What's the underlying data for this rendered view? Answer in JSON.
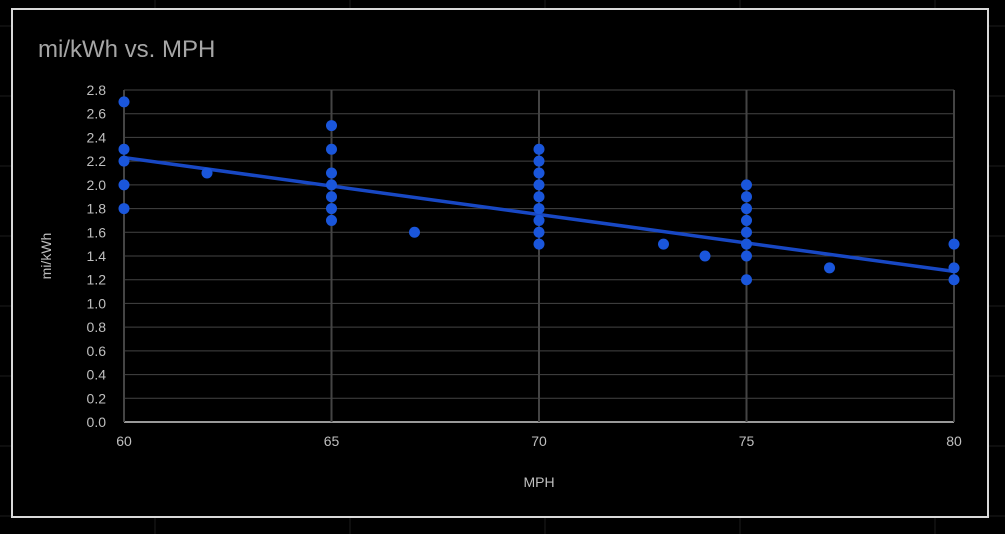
{
  "colors": {
    "background": "#000000",
    "frame_border": "#d9d9d9",
    "gridline": "#444444",
    "axis_text": "#bfbfbf",
    "title_text": "#a6a6a6",
    "series": "#1a56db",
    "trendline": "#1848c4"
  },
  "chart_data": {
    "type": "scatter",
    "title": "mi/kWh vs. MPH",
    "xlabel": "MPH",
    "ylabel": "mi/kWh",
    "xlim": [
      60,
      80
    ],
    "ylim": [
      0.0,
      2.8
    ],
    "xticks": [
      "60",
      "65",
      "70",
      "75",
      "80"
    ],
    "yticks": [
      "0.0",
      "0.2",
      "0.4",
      "0.6",
      "0.8",
      "1.0",
      "1.2",
      "1.4",
      "1.6",
      "1.8",
      "2.0",
      "2.2",
      "2.4",
      "2.6",
      "2.8"
    ],
    "grid": true,
    "legend": "none",
    "points": [
      [
        60,
        2.7
      ],
      [
        60,
        2.3
      ],
      [
        60,
        2.2
      ],
      [
        60,
        2.0
      ],
      [
        60,
        1.8
      ],
      [
        62,
        2.1
      ],
      [
        65,
        2.5
      ],
      [
        65,
        2.3
      ],
      [
        65,
        2.1
      ],
      [
        65,
        2.0
      ],
      [
        65,
        1.9
      ],
      [
        65,
        1.8
      ],
      [
        65,
        1.7
      ],
      [
        67,
        1.6
      ],
      [
        70,
        2.3
      ],
      [
        70,
        2.2
      ],
      [
        70,
        2.1
      ],
      [
        70,
        2.0
      ],
      [
        70,
        1.9
      ],
      [
        70,
        1.8
      ],
      [
        70,
        1.7
      ],
      [
        70,
        1.6
      ],
      [
        70,
        1.5
      ],
      [
        73,
        1.5
      ],
      [
        74,
        1.4
      ],
      [
        75,
        2.0
      ],
      [
        75,
        1.9
      ],
      [
        75,
        1.8
      ],
      [
        75,
        1.7
      ],
      [
        75,
        1.6
      ],
      [
        75,
        1.5
      ],
      [
        75,
        1.4
      ],
      [
        75,
        1.2
      ],
      [
        77,
        1.3
      ],
      [
        80,
        1.5
      ],
      [
        80,
        1.3
      ],
      [
        80,
        1.2
      ]
    ],
    "trendline": {
      "type": "linear",
      "x": [
        60,
        80
      ],
      "y": [
        2.23,
        1.27
      ]
    }
  }
}
